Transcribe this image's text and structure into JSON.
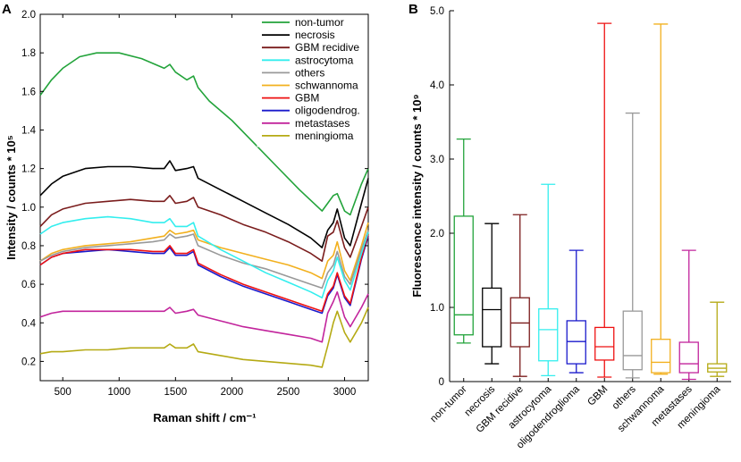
{
  "panel_a": {
    "letter": "A",
    "x_label": "Raman shift / cm⁻¹",
    "y_label": "Intensity / counts * 10⁵",
    "x_ticks": [
      "500",
      "1000",
      "1500",
      "2000",
      "2500",
      "3000"
    ],
    "y_ticks": [
      "0.2",
      "0.4",
      "0.6",
      "0.8",
      "1.0",
      "1.2",
      "1.4",
      "1.6",
      "1.8",
      "2.0"
    ]
  },
  "panel_b": {
    "letter": "B",
    "y_label": "Fluorescence intensity / counts * 10⁹",
    "y_ticks": [
      "0",
      "1.0",
      "2.0",
      "3.0",
      "4.0",
      "5.0"
    ]
  },
  "colors": {
    "non-tumor": "#22a33a",
    "necrosis": "#000000",
    "GBM recidive": "#7a1c1c",
    "astrocytoma": "#33eeee",
    "others": "#999999",
    "schwannoma": "#f2b01e",
    "GBM": "#ee1111",
    "oligodendrog.": "#1a1acc",
    "metastases": "#c2249c",
    "meningioma": "#b5aa14"
  },
  "chart_data": [
    {
      "type": "line",
      "title": "",
      "xlabel": "Raman shift / cm⁻¹",
      "ylabel": "Intensity / counts * 10⁵",
      "xlim": [
        300,
        3210
      ],
      "ylim": [
        0.1,
        2.0
      ],
      "legend_position": "top-right",
      "series": [
        {
          "name": "non-tumor",
          "x": [
            300,
            400,
            500,
            650,
            800,
            1000,
            1200,
            1400,
            1450,
            1500,
            1600,
            1660,
            1700,
            1800,
            2000,
            2200,
            2400,
            2600,
            2800,
            2850,
            2900,
            2935,
            3000,
            3050,
            3150,
            3210
          ],
          "y": [
            1.58,
            1.66,
            1.72,
            1.78,
            1.8,
            1.8,
            1.77,
            1.72,
            1.74,
            1.7,
            1.66,
            1.68,
            1.62,
            1.55,
            1.45,
            1.33,
            1.21,
            1.09,
            0.98,
            1.02,
            1.06,
            1.07,
            0.98,
            0.96,
            1.12,
            1.2
          ]
        },
        {
          "name": "necrosis",
          "x": [
            300,
            400,
            500,
            700,
            900,
            1100,
            1300,
            1400,
            1450,
            1500,
            1600,
            1660,
            1700,
            1900,
            2100,
            2300,
            2500,
            2700,
            2800,
            2850,
            2900,
            2935,
            3000,
            3050,
            3150,
            3210
          ],
          "y": [
            1.06,
            1.12,
            1.16,
            1.2,
            1.21,
            1.21,
            1.2,
            1.2,
            1.24,
            1.19,
            1.2,
            1.21,
            1.15,
            1.09,
            1.03,
            0.97,
            0.91,
            0.84,
            0.79,
            0.88,
            0.92,
            0.99,
            0.84,
            0.8,
            1.02,
            1.15
          ]
        },
        {
          "name": "GBM recidive",
          "x": [
            300,
            400,
            500,
            700,
            900,
            1100,
            1300,
            1400,
            1450,
            1500,
            1600,
            1660,
            1700,
            1900,
            2100,
            2300,
            2500,
            2700,
            2800,
            2850,
            2900,
            2935,
            3000,
            3050,
            3150,
            3210
          ],
          "y": [
            0.9,
            0.96,
            0.99,
            1.02,
            1.03,
            1.04,
            1.03,
            1.03,
            1.06,
            1.02,
            1.03,
            1.05,
            1.0,
            0.96,
            0.91,
            0.87,
            0.82,
            0.76,
            0.72,
            0.85,
            0.87,
            0.93,
            0.79,
            0.74,
            0.9,
            1.0
          ]
        },
        {
          "name": "astrocytoma",
          "x": [
            300,
            400,
            500,
            700,
            900,
            1100,
            1300,
            1400,
            1450,
            1500,
            1600,
            1660,
            1700,
            1900,
            2100,
            2300,
            2500,
            2700,
            2800,
            2850,
            2900,
            2935,
            3000,
            3050,
            3150,
            3210
          ],
          "y": [
            0.86,
            0.9,
            0.92,
            0.94,
            0.95,
            0.94,
            0.92,
            0.92,
            0.94,
            0.9,
            0.9,
            0.92,
            0.85,
            0.78,
            0.72,
            0.66,
            0.61,
            0.56,
            0.53,
            0.62,
            0.67,
            0.74,
            0.62,
            0.57,
            0.76,
            0.87
          ]
        },
        {
          "name": "others",
          "x": [
            300,
            400,
            500,
            700,
            900,
            1100,
            1300,
            1400,
            1450,
            1500,
            1600,
            1660,
            1700,
            1900,
            2100,
            2300,
            2500,
            2700,
            2800,
            2850,
            2900,
            2935,
            3000,
            3050,
            3150,
            3210
          ],
          "y": [
            0.72,
            0.75,
            0.77,
            0.79,
            0.8,
            0.81,
            0.82,
            0.83,
            0.86,
            0.84,
            0.85,
            0.86,
            0.8,
            0.75,
            0.71,
            0.68,
            0.64,
            0.6,
            0.58,
            0.66,
            0.7,
            0.77,
            0.64,
            0.6,
            0.78,
            0.88
          ]
        },
        {
          "name": "schwannoma",
          "x": [
            300,
            400,
            500,
            700,
            900,
            1100,
            1300,
            1400,
            1450,
            1500,
            1600,
            1660,
            1700,
            1900,
            2100,
            2300,
            2500,
            2700,
            2800,
            2850,
            2900,
            2935,
            3000,
            3050,
            3150,
            3210
          ],
          "y": [
            0.72,
            0.76,
            0.78,
            0.8,
            0.81,
            0.82,
            0.84,
            0.85,
            0.88,
            0.86,
            0.87,
            0.88,
            0.83,
            0.79,
            0.76,
            0.73,
            0.7,
            0.66,
            0.63,
            0.72,
            0.75,
            0.82,
            0.67,
            0.62,
            0.8,
            0.92
          ]
        },
        {
          "name": "GBM",
          "x": [
            300,
            400,
            500,
            700,
            900,
            1100,
            1300,
            1400,
            1450,
            1500,
            1600,
            1660,
            1700,
            1900,
            2100,
            2300,
            2500,
            2700,
            2800,
            2850,
            2900,
            2935,
            3000,
            3050,
            3150,
            3210
          ],
          "y": [
            0.7,
            0.74,
            0.76,
            0.78,
            0.78,
            0.78,
            0.77,
            0.77,
            0.8,
            0.76,
            0.76,
            0.78,
            0.71,
            0.65,
            0.6,
            0.56,
            0.52,
            0.48,
            0.46,
            0.55,
            0.59,
            0.66,
            0.54,
            0.5,
            0.74,
            0.86
          ]
        },
        {
          "name": "oligodendrog.",
          "x": [
            300,
            400,
            500,
            700,
            900,
            1100,
            1300,
            1400,
            1450,
            1500,
            1600,
            1660,
            1700,
            1900,
            2100,
            2300,
            2500,
            2700,
            2800,
            2850,
            2900,
            2935,
            3000,
            3050,
            3150,
            3210
          ],
          "y": [
            0.7,
            0.74,
            0.76,
            0.77,
            0.78,
            0.77,
            0.76,
            0.76,
            0.79,
            0.75,
            0.75,
            0.77,
            0.7,
            0.64,
            0.59,
            0.55,
            0.51,
            0.47,
            0.45,
            0.54,
            0.58,
            0.65,
            0.53,
            0.49,
            0.73,
            0.85
          ]
        },
        {
          "name": "metastases",
          "x": [
            300,
            400,
            500,
            700,
            900,
            1100,
            1300,
            1400,
            1450,
            1500,
            1600,
            1660,
            1700,
            1900,
            2100,
            2300,
            2500,
            2700,
            2800,
            2850,
            2900,
            2935,
            3000,
            3050,
            3150,
            3210
          ],
          "y": [
            0.43,
            0.45,
            0.46,
            0.46,
            0.46,
            0.46,
            0.46,
            0.46,
            0.48,
            0.45,
            0.46,
            0.47,
            0.44,
            0.41,
            0.38,
            0.36,
            0.34,
            0.32,
            0.3,
            0.45,
            0.51,
            0.56,
            0.43,
            0.38,
            0.48,
            0.55
          ]
        },
        {
          "name": "meningioma",
          "x": [
            300,
            400,
            500,
            700,
            900,
            1100,
            1300,
            1400,
            1450,
            1500,
            1600,
            1660,
            1700,
            1900,
            2100,
            2300,
            2500,
            2700,
            2800,
            2850,
            2900,
            2935,
            3000,
            3050,
            3150,
            3210
          ],
          "y": [
            0.24,
            0.25,
            0.25,
            0.26,
            0.26,
            0.27,
            0.27,
            0.27,
            0.29,
            0.27,
            0.27,
            0.29,
            0.25,
            0.23,
            0.21,
            0.2,
            0.19,
            0.18,
            0.17,
            0.28,
            0.4,
            0.46,
            0.35,
            0.3,
            0.4,
            0.48
          ]
        }
      ]
    },
    {
      "type": "box",
      "title": "",
      "xlabel": "",
      "ylabel": "Fluorescence intensity / counts * 10⁹",
      "ylim": [
        0,
        5.0
      ],
      "categories": [
        "non-tumor",
        "necrosis",
        "GBM recidive",
        "astrocytoma",
        "oligodendroglioma",
        "GBM",
        "others",
        "schwannoma",
        "metastases",
        "meningioma"
      ],
      "boxes": [
        {
          "name": "non-tumor",
          "min": 0.52,
          "q1": 0.63,
          "median": 0.9,
          "q3": 2.23,
          "max": 3.27
        },
        {
          "name": "necrosis",
          "min": 0.24,
          "q1": 0.47,
          "median": 0.97,
          "q3": 1.26,
          "max": 2.13
        },
        {
          "name": "GBM recidive",
          "min": 0.07,
          "q1": 0.47,
          "median": 0.79,
          "q3": 1.13,
          "max": 2.25
        },
        {
          "name": "astrocytoma",
          "min": 0.08,
          "q1": 0.28,
          "median": 0.7,
          "q3": 0.98,
          "max": 2.66
        },
        {
          "name": "oligodendroglioma",
          "min": 0.12,
          "q1": 0.24,
          "median": 0.54,
          "q3": 0.82,
          "max": 1.77
        },
        {
          "name": "GBM",
          "min": 0.06,
          "q1": 0.29,
          "median": 0.47,
          "q3": 0.73,
          "max": 4.83
        },
        {
          "name": "others",
          "min": 0.05,
          "q1": 0.16,
          "median": 0.35,
          "q3": 0.95,
          "max": 3.62
        },
        {
          "name": "schwannoma",
          "min": 0.1,
          "q1": 0.12,
          "median": 0.26,
          "q3": 0.57,
          "max": 4.82
        },
        {
          "name": "metastases",
          "min": 0.03,
          "q1": 0.12,
          "median": 0.24,
          "q3": 0.53,
          "max": 1.77
        },
        {
          "name": "meningioma",
          "min": 0.07,
          "q1": 0.13,
          "median": 0.18,
          "q3": 0.24,
          "max": 1.07
        }
      ]
    }
  ]
}
